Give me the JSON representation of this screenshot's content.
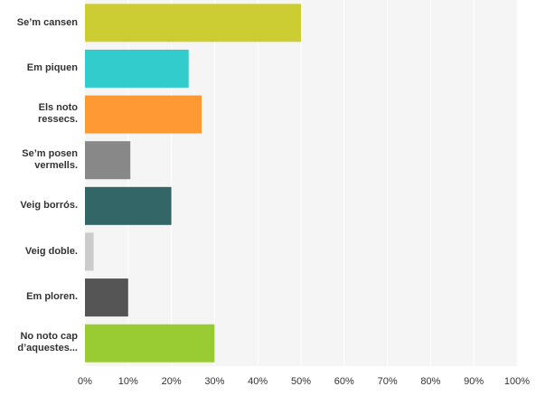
{
  "chart_data": {
    "type": "bar",
    "orientation": "horizontal",
    "categories": [
      "Se’m cansen",
      "Em piquen",
      "Els noto ressecs.",
      "Se’m posen vermells.",
      "Veig borrós.",
      "Veig doble.",
      "Em ploren.",
      "No noto cap d’aquestes..."
    ],
    "values": [
      50,
      24,
      27,
      10.5,
      20,
      2,
      10,
      30
    ],
    "colors": [
      "#cccc33",
      "#33cccc",
      "#ff9933",
      "#888888",
      "#336666",
      "#cccccc",
      "#555555",
      "#99cc33"
    ],
    "xlim": [
      0,
      100
    ],
    "xticks": [
      {
        "value": 0,
        "label": "0%"
      },
      {
        "value": 10,
        "label": "10%"
      },
      {
        "value": 20,
        "label": "20%"
      },
      {
        "value": 30,
        "label": "30%"
      },
      {
        "value": 40,
        "label": "40%"
      },
      {
        "value": 50,
        "label": "50%"
      },
      {
        "value": 60,
        "label": "60%"
      },
      {
        "value": 70,
        "label": "70%"
      },
      {
        "value": 80,
        "label": "80%"
      },
      {
        "value": 90,
        "label": "90%"
      },
      {
        "value": 100,
        "label": "100%"
      }
    ],
    "grid": true
  }
}
